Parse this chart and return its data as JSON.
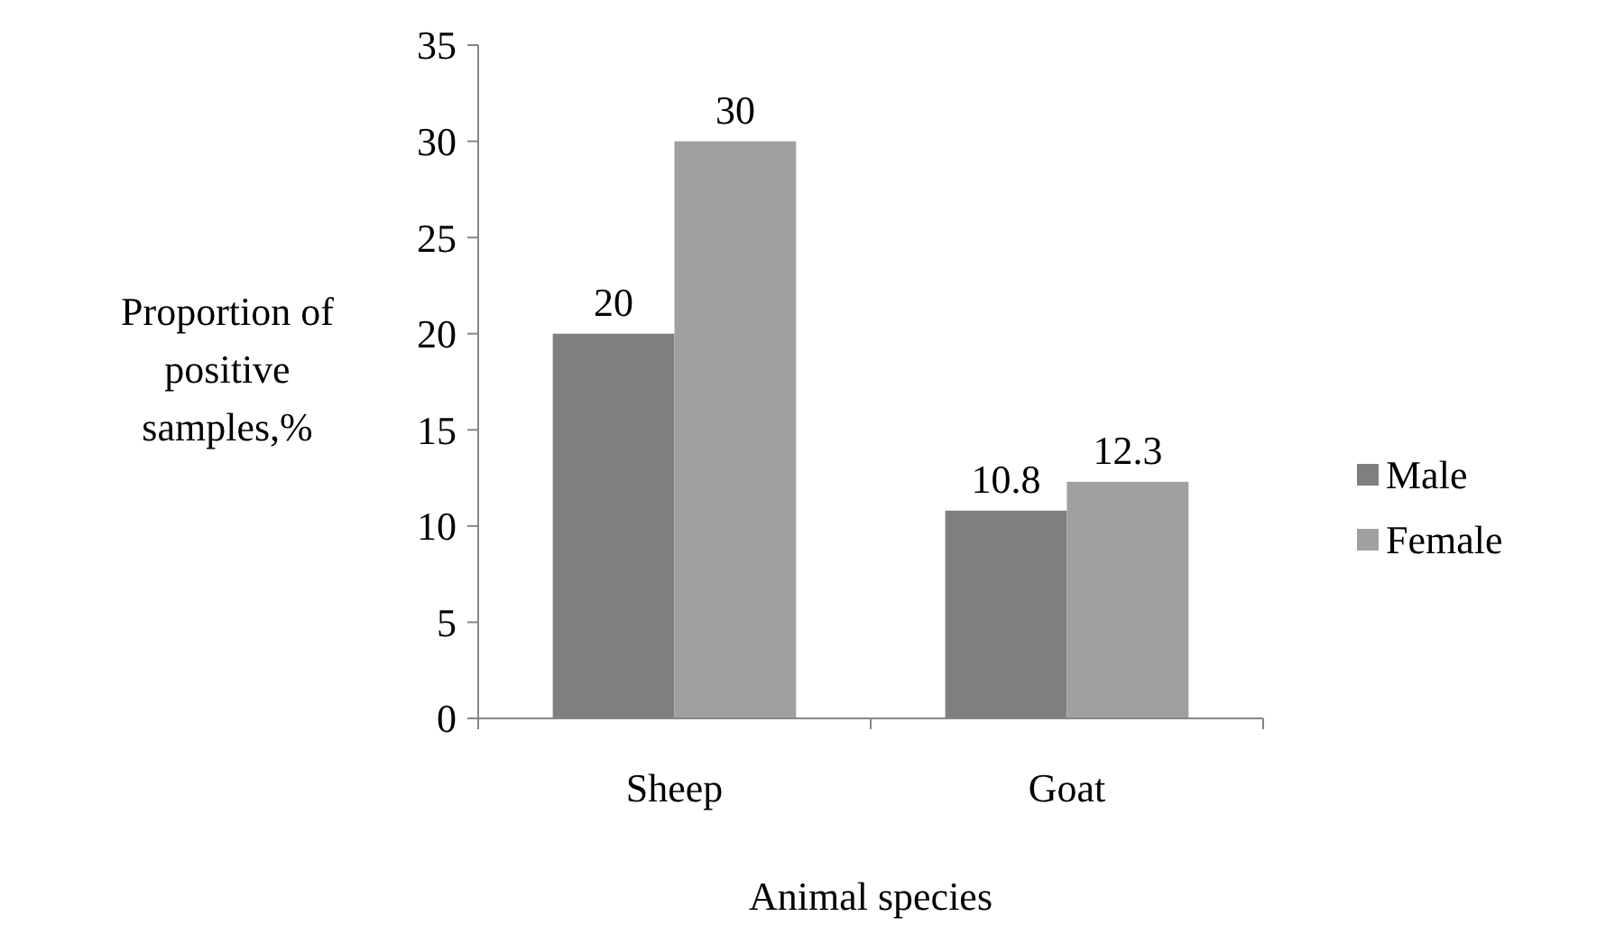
{
  "chart_data": {
    "type": "bar",
    "xlabel": "Animal species",
    "ylabel": "Proportion of positive samples,%",
    "categories": [
      "Sheep",
      "Goat"
    ],
    "series": [
      {
        "name": "Male",
        "color": "#7f7f7f",
        "values": [
          20,
          10.8
        ]
      },
      {
        "name": "Female",
        "color": "#a0a0a0",
        "values": [
          30,
          12.3
        ]
      }
    ],
    "ylim": [
      0,
      35
    ],
    "yticks": [
      0,
      5,
      10,
      15,
      20,
      25,
      30,
      35
    ],
    "data_labels": true,
    "legend": "right",
    "grid": false
  }
}
